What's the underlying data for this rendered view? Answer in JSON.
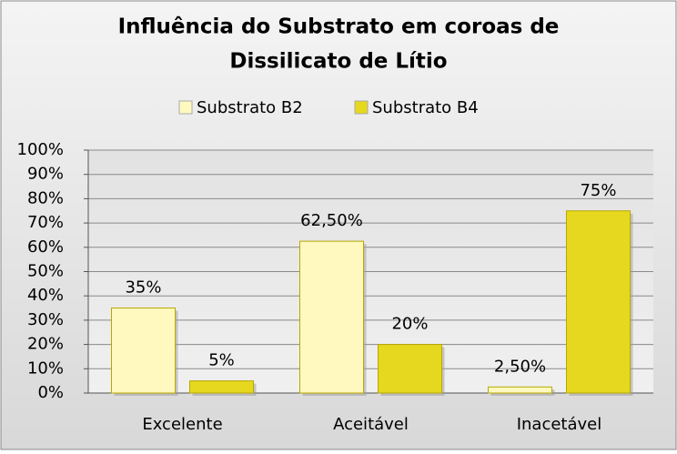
{
  "chart_data": {
    "type": "bar",
    "title": [
      "Influência do Substrato em coroas de",
      "Dissilicato de Lítio"
    ],
    "categories": [
      "Excelente",
      "Aceitável",
      "Inacetável"
    ],
    "series": [
      {
        "name": "Substrato B2",
        "color": "#fff9c0",
        "values": [
          35,
          62.5,
          2.5
        ],
        "value_labels": [
          "35%",
          "62,50%",
          "2,50%"
        ]
      },
      {
        "name": "Substrato B4",
        "color": "#e6d81e",
        "values": [
          5,
          20,
          75
        ],
        "value_labels": [
          "5%",
          "20%",
          "75%"
        ]
      }
    ],
    "ylim": [
      0,
      100
    ],
    "yticks": [
      {
        "value": 0,
        "label": "0%"
      },
      {
        "value": 10,
        "label": "10%"
      },
      {
        "value": 20,
        "label": "20%"
      },
      {
        "value": 30,
        "label": "30%"
      },
      {
        "value": 40,
        "label": "40%"
      },
      {
        "value": 50,
        "label": "50%"
      },
      {
        "value": 60,
        "label": "60%"
      },
      {
        "value": 70,
        "label": "70%"
      },
      {
        "value": 80,
        "label": "80%"
      },
      {
        "value": 90,
        "label": "90%"
      },
      {
        "value": 100,
        "label": "100%"
      }
    ],
    "grid": true,
    "legend": "top"
  }
}
